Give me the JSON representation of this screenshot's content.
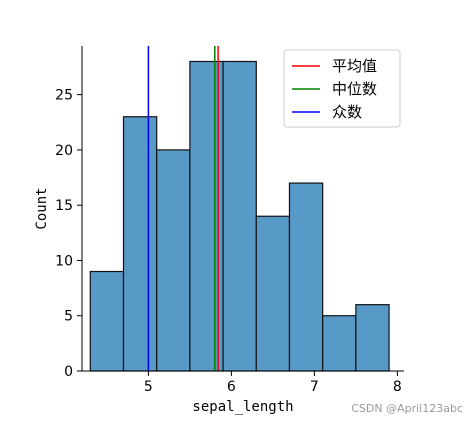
{
  "chart_data": {
    "type": "histogram",
    "xlabel": "sepal_length",
    "ylabel": "Count",
    "xlim": [
      4.2,
      8.08
    ],
    "ylim": [
      0,
      29.4
    ],
    "xticks": [
      "5",
      "6",
      "7",
      "8"
    ],
    "yticks": [
      "0",
      "5",
      "10",
      "15",
      "20",
      "25"
    ],
    "bins": [
      {
        "x0": 4.3,
        "x1": 4.7,
        "count": 9
      },
      {
        "x0": 4.7,
        "x1": 5.1,
        "count": 23
      },
      {
        "x0": 5.1,
        "x1": 5.5,
        "count": 20
      },
      {
        "x0": 5.5,
        "x1": 5.9,
        "count": 28
      },
      {
        "x0": 5.9,
        "x1": 6.3,
        "count": 28
      },
      {
        "x0": 6.3,
        "x1": 6.7,
        "count": 14
      },
      {
        "x0": 6.7,
        "x1": 7.1,
        "count": 17
      },
      {
        "x0": 7.1,
        "x1": 7.5,
        "count": 5
      },
      {
        "x0": 7.5,
        "x1": 7.9,
        "count": 6
      }
    ],
    "bar_color": "#5799c7",
    "vlines": [
      {
        "name": "平均值",
        "x": 5.84,
        "color": "#ff0000"
      },
      {
        "name": "中位数",
        "x": 5.8,
        "color": "#008000"
      },
      {
        "name": "众数",
        "x": 5.0,
        "color": "#0000ff"
      }
    ],
    "legend_position": "top-right",
    "grid": false
  },
  "watermark": "CSDN @April123abc"
}
